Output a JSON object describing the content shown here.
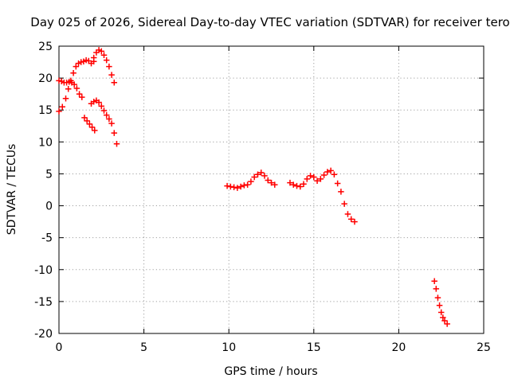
{
  "chart_data": {
    "type": "scatter",
    "title": "Day 025 of 2026, Sidereal Day-to-day VTEC variation (SDTVAR) for receiver tero",
    "xlabel": "GPS time / hours",
    "ylabel": "SDTVAR / TECUs",
    "xlim": [
      0,
      25
    ],
    "ylim": [
      -20,
      25
    ],
    "xticks": [
      "0",
      "5",
      "10",
      "15",
      "20",
      "25"
    ],
    "yticks": [
      "25",
      "20",
      "15",
      "10",
      "5",
      "0",
      "-5",
      "-10",
      "-15",
      "-20"
    ],
    "grid": true,
    "legend": "none",
    "marker": "plus",
    "color": "#ff0000",
    "series": [
      {
        "x": [
          0.0,
          0.15,
          0.3,
          0.45,
          0.6,
          0.75,
          0.9,
          1.05,
          1.2,
          1.35
        ],
        "y": [
          19.6,
          19.5,
          19.3,
          19.3,
          19.4,
          19.3,
          19.0,
          18.4,
          17.5,
          17.0
        ]
      },
      {
        "x": [
          0.0,
          0.2,
          0.4,
          0.55,
          0.7,
          0.85,
          1.0,
          1.15,
          1.3,
          1.45,
          1.6,
          1.75,
          1.9,
          2.05
        ],
        "y": [
          14.8,
          15.5,
          16.8,
          18.3,
          19.6,
          20.8,
          21.8,
          22.3,
          22.5,
          22.6,
          22.8,
          22.7,
          22.3,
          22.6
        ]
      },
      {
        "x": [
          2.05,
          2.2,
          2.35,
          2.5,
          2.65,
          2.8,
          2.95,
          3.1,
          3.25
        ],
        "y": [
          23.2,
          24.0,
          24.4,
          24.2,
          23.6,
          22.8,
          21.8,
          20.5,
          19.3
        ]
      },
      {
        "x": [
          1.9,
          2.05,
          2.2,
          2.35,
          2.5,
          2.65,
          2.8,
          2.95,
          3.1,
          3.25,
          3.4
        ],
        "y": [
          16.0,
          16.3,
          16.5,
          16.2,
          15.6,
          14.9,
          14.2,
          13.6,
          12.9,
          11.4,
          9.7
        ]
      },
      {
        "x": [
          1.5,
          1.65,
          1.8,
          1.95,
          2.1
        ],
        "y": [
          13.8,
          13.3,
          12.8,
          12.3,
          11.8
        ]
      },
      {
        "x": [
          9.9,
          10.1,
          10.3,
          10.5,
          10.7,
          10.9,
          11.1,
          11.3,
          11.5,
          11.7,
          11.9,
          12.1,
          12.3,
          12.5,
          12.7
        ],
        "y": [
          3.1,
          3.0,
          2.9,
          2.8,
          3.0,
          3.2,
          3.3,
          3.8,
          4.5,
          4.9,
          5.2,
          4.7,
          4.0,
          3.6,
          3.3
        ]
      },
      {
        "x": [
          13.6,
          13.8,
          14.0,
          14.2,
          14.4,
          14.6,
          14.8,
          15.0,
          15.2,
          15.4,
          15.6,
          15.8,
          16.0,
          16.2,
          16.4,
          16.6,
          16.8,
          17.0,
          17.2,
          17.4
        ],
        "y": [
          3.6,
          3.3,
          3.1,
          3.0,
          3.4,
          4.2,
          4.7,
          4.5,
          3.9,
          4.2,
          4.8,
          5.3,
          5.5,
          4.9,
          3.5,
          2.2,
          0.3,
          -1.3,
          -2.1,
          -2.5
        ]
      },
      {
        "x": [
          22.1,
          22.2,
          22.3,
          22.4,
          22.5,
          22.6,
          22.7,
          22.85
        ],
        "y": [
          -11.8,
          -13.0,
          -14.4,
          -15.6,
          -16.7,
          -17.5,
          -18.0,
          -18.5
        ]
      }
    ]
  }
}
